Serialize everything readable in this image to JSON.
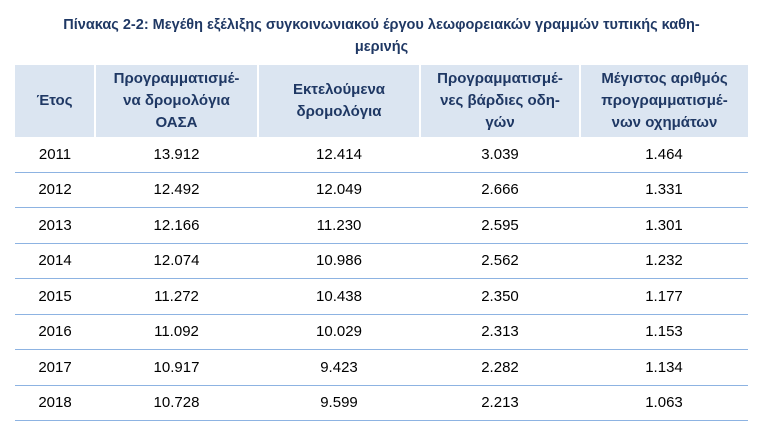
{
  "title": [
    "Πίνακας 2-2: Μεγέθη εξέλιξης συγκοινωνιακού έργου λεωφορειακών γραμμών τυπικής καθη-",
    "μερινής"
  ],
  "table": {
    "header": [
      [
        "Έτος"
      ],
      [
        "Προγραμματισμέ-",
        "να δρομολόγια",
        "ΟΑΣΑ"
      ],
      [
        "Εκτελούμενα",
        "δρομολόγια"
      ],
      [
        "Προγραμματισμέ-",
        "νες βάρδιες οδη-",
        "γών"
      ],
      [
        "Μέγιστος αριθμός",
        "προγραμματισμέ-",
        "νων οχημάτων"
      ]
    ],
    "rows": [
      [
        "2011",
        "13.912",
        "12.414",
        "3.039",
        "1.464"
      ],
      [
        "2012",
        "12.492",
        "12.049",
        "2.666",
        "1.331"
      ],
      [
        "2013",
        "12.166",
        "11.230",
        "2.595",
        "1.301"
      ],
      [
        "2014",
        "12.074",
        "10.986",
        "2.562",
        "1.232"
      ],
      [
        "2015",
        "11.272",
        "10.438",
        "2.350",
        "1.177"
      ],
      [
        "2016",
        "11.092",
        "10.029",
        "2.313",
        "1.153"
      ],
      [
        "2017",
        "10.917",
        "9.423",
        "2.282",
        "1.134"
      ],
      [
        "2018",
        "10.728",
        "9.599",
        "2.213",
        "1.063"
      ]
    ]
  }
}
